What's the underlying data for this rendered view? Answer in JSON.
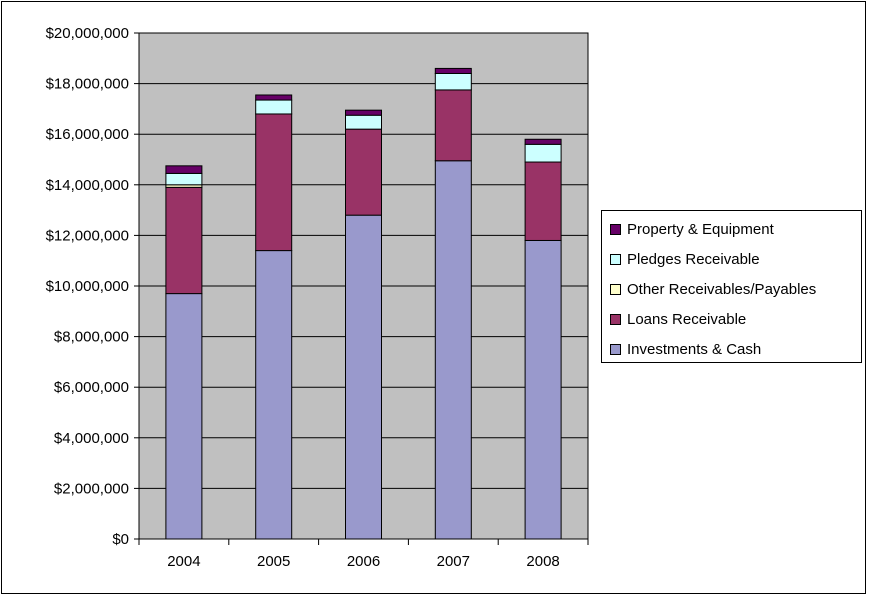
{
  "chart_data": {
    "type": "bar",
    "stacked": true,
    "title": "",
    "xlabel": "",
    "ylabel": "",
    "categories": [
      "2004",
      "2005",
      "2006",
      "2007",
      "2008"
    ],
    "ylim": [
      0,
      20000000
    ],
    "yticks": [
      0,
      2000000,
      4000000,
      6000000,
      8000000,
      10000000,
      12000000,
      14000000,
      16000000,
      18000000,
      20000000
    ],
    "ytick_labels": [
      "$0",
      "$2,000,000",
      "$4,000,000",
      "$6,000,000",
      "$8,000,000",
      "$10,000,000",
      "$12,000,000",
      "$14,000,000",
      "$16,000,000",
      "$18,000,000",
      "$20,000,000"
    ],
    "grid": true,
    "legend_position": "right",
    "plot_background": "#c0c0c0",
    "series": [
      {
        "name": "Investments & Cash",
        "color": "#9999cc",
        "values": [
          9700000,
          11400000,
          12800000,
          14950000,
          11800000
        ]
      },
      {
        "name": "Loans Receivable",
        "color": "#993366",
        "values": [
          4200000,
          5400000,
          3400000,
          2800000,
          3100000
        ]
      },
      {
        "name": "Other Receivables/Payables",
        "color": "#ffffcc",
        "values": [
          100000,
          0,
          0,
          0,
          0
        ]
      },
      {
        "name": "Pledges Receivable",
        "color": "#ccffff",
        "values": [
          450000,
          550000,
          550000,
          650000,
          700000
        ]
      },
      {
        "name": "Property & Equipment",
        "color": "#660066",
        "values": [
          300000,
          200000,
          200000,
          200000,
          200000
        ]
      }
    ],
    "legend_order": [
      "Property & Equipment",
      "Pledges Receivable",
      "Other Receivables/Payables",
      "Loans Receivable",
      "Investments & Cash"
    ]
  }
}
